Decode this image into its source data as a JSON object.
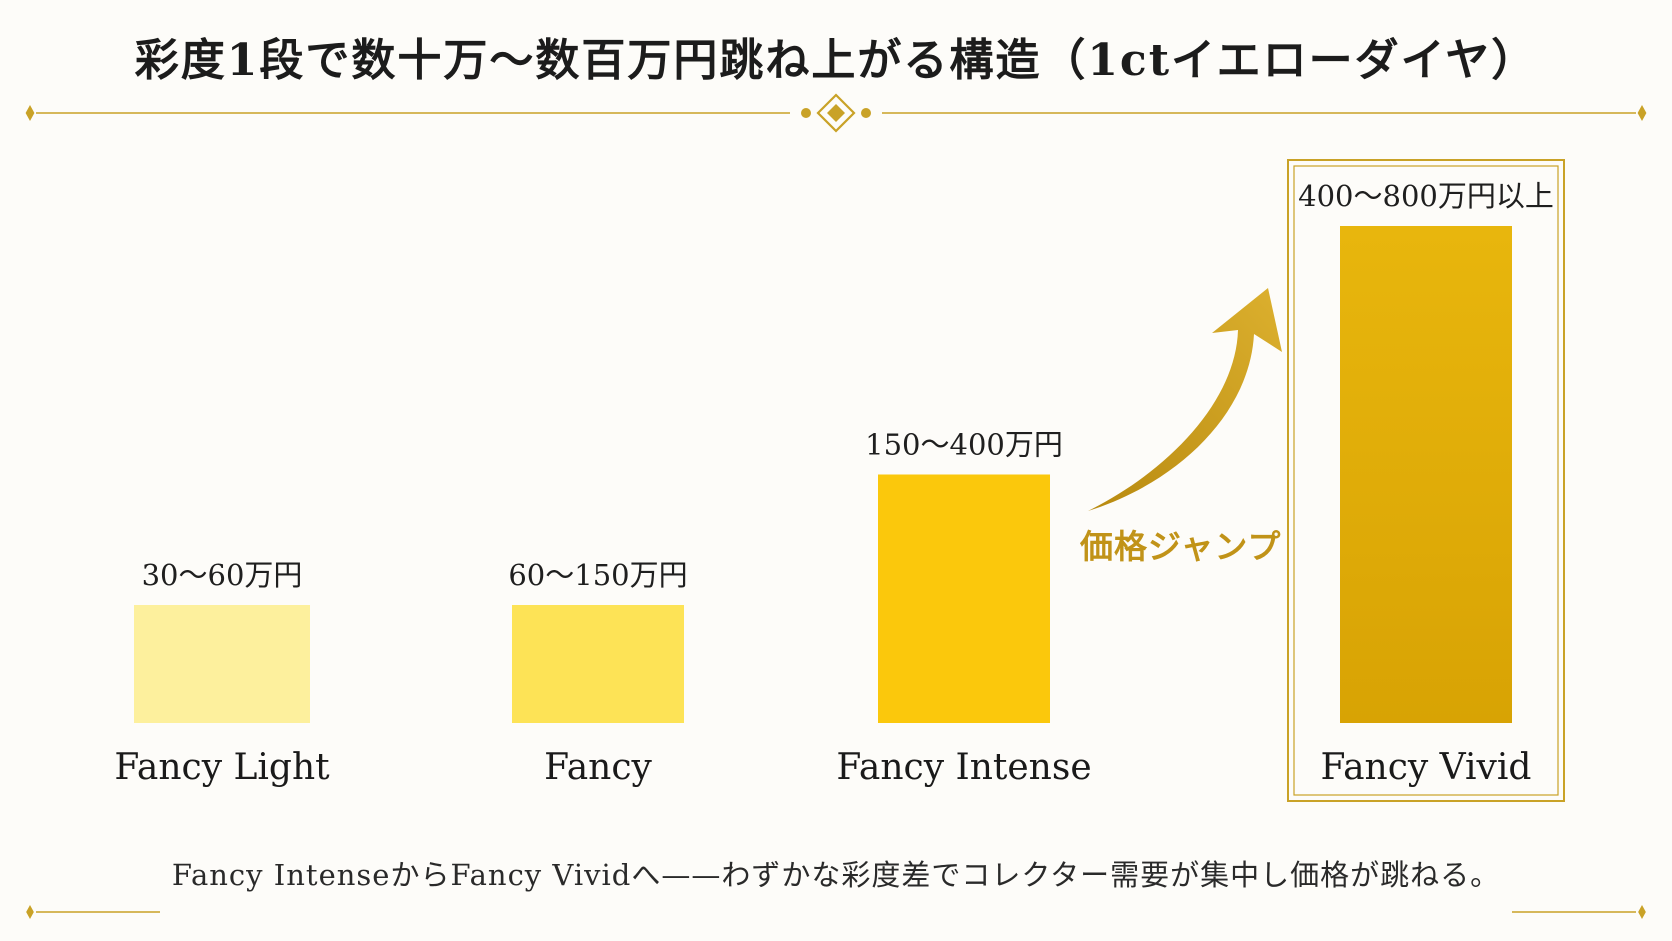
{
  "chart_data": {
    "type": "bar",
    "title": "彩度1段で数十万～数百万円跳ね上がる構造（1ctイエローダイヤ）",
    "categories": [
      "Fancy Light",
      "Fancy",
      "Fancy Intense",
      "Fancy Vivid"
    ],
    "value_labels": [
      "30～60万円",
      "60～150万円",
      "150～400万円",
      "400～800万円以上"
    ],
    "ranges": [
      [
        30,
        60
      ],
      [
        60,
        150
      ],
      [
        150,
        400
      ],
      [
        400,
        800
      ]
    ],
    "unit": "万円",
    "colors": [
      "#fdf09d",
      "#fde356",
      "#fbc80c",
      "#dfa906"
    ],
    "highlighted_category": "Fancy Vivid",
    "annotation": "価格ジャンプ",
    "xlabel": "",
    "ylabel": "",
    "grid": false,
    "legend": "none"
  },
  "footnote": "Fancy IntenseからFancy Vividへ——わずかな彩度差でコレクター需要が集中し価格が跳ねる。",
  "accent_color": "#c9a227"
}
